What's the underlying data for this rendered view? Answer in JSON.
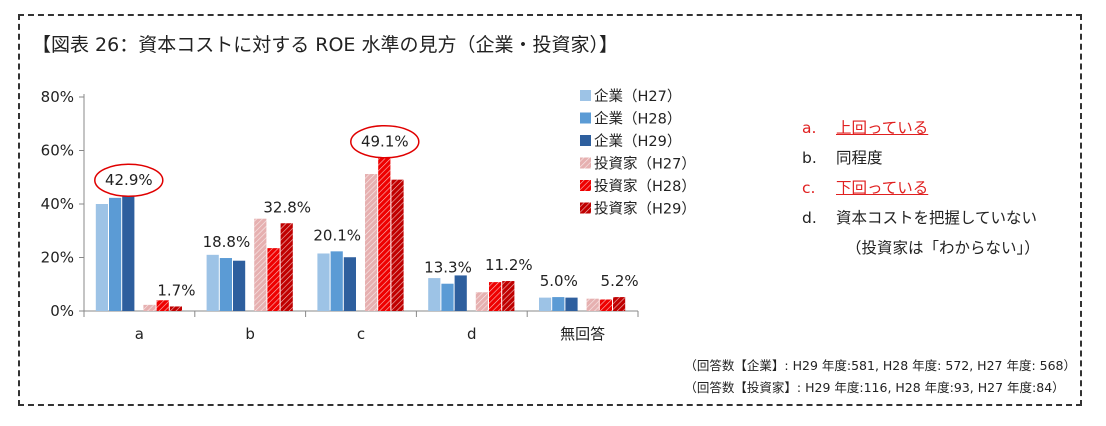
{
  "title": "【図表 26：資本コストに対する ROE 水準の見方（企業・投資家）】",
  "chart_data": {
    "type": "bar",
    "categories": [
      "a",
      "b",
      "c",
      "d",
      "無回答"
    ],
    "yticks": [
      "0%",
      "20%",
      "40%",
      "60%",
      "80%"
    ],
    "ylim": [
      0,
      80
    ],
    "series": [
      {
        "name": "企業（H27）",
        "values": [
          40.0,
          21.0,
          21.5,
          12.3,
          5.0
        ],
        "color": "#9dc3e6",
        "hatch": false
      },
      {
        "name": "企業（H28）",
        "values": [
          42.3,
          19.8,
          22.3,
          10.2,
          5.2
        ],
        "color": "#5b9bd5",
        "hatch": false
      },
      {
        "name": "企業（H29）",
        "values": [
          42.9,
          18.8,
          20.1,
          13.3,
          5.0
        ],
        "color": "#2e5f9e",
        "hatch": false
      },
      {
        "name": "投資家（H27）",
        "values": [
          2.3,
          34.5,
          51.2,
          7.0,
          4.6
        ],
        "color": "#e6b0b0",
        "hatch": true
      },
      {
        "name": "投資家（H28）",
        "values": [
          4.0,
          23.5,
          57.3,
          10.8,
          4.3
        ],
        "color": "#ee0000",
        "hatch": true
      },
      {
        "name": "投資家（H29）",
        "values": [
          1.7,
          32.8,
          49.1,
          11.2,
          5.2
        ],
        "color": "#c00000",
        "hatch": true
      }
    ],
    "data_labels": [
      {
        "text": "42.9%",
        "category": 0,
        "anchor_series": 2,
        "circled": true
      },
      {
        "text": "1.7%",
        "category": 0,
        "anchor_series": 5,
        "circled": false
      },
      {
        "text": "18.8%",
        "category": 1,
        "anchor_series": 1,
        "circled": false
      },
      {
        "text": "32.8%",
        "category": 1,
        "anchor_series": 5,
        "circled": false
      },
      {
        "text": "20.1%",
        "category": 2,
        "anchor_series": 1,
        "circled": false
      },
      {
        "text": "49.1%",
        "category": 2,
        "anchor_series": 4,
        "circled": true
      },
      {
        "text": "13.3%",
        "category": 3,
        "anchor_series": 1,
        "circled": false
      },
      {
        "text": "11.2%",
        "category": 3,
        "anchor_series": 5,
        "circled": false
      },
      {
        "text": "5.0%",
        "category": 4,
        "anchor_series": 1,
        "circled": false
      },
      {
        "text": "5.2%",
        "category": 4,
        "anchor_series": 5,
        "circled": false
      }
    ],
    "legend_position": "top-right",
    "grid": false
  },
  "notes": [
    {
      "letter": "a.",
      "text": "上回っている",
      "red": true
    },
    {
      "letter": "b.",
      "text": "同程度",
      "red": false
    },
    {
      "letter": "c.",
      "text": "下回っている",
      "red": true
    },
    {
      "letter": "d.",
      "text": "資本コストを把握していない",
      "red": false
    }
  ],
  "notes_sub": "（投資家は「わからない」）",
  "footer": [
    "（回答数【企業】: H29 年度:581, H28 年度: 572, H27 年度: 568）",
    "（回答数【投資家】: H29 年度:116, H28 年度:93, H27 年度:84）"
  ],
  "colors": {
    "accent_red": "#e02020",
    "circle": "#e00000"
  }
}
